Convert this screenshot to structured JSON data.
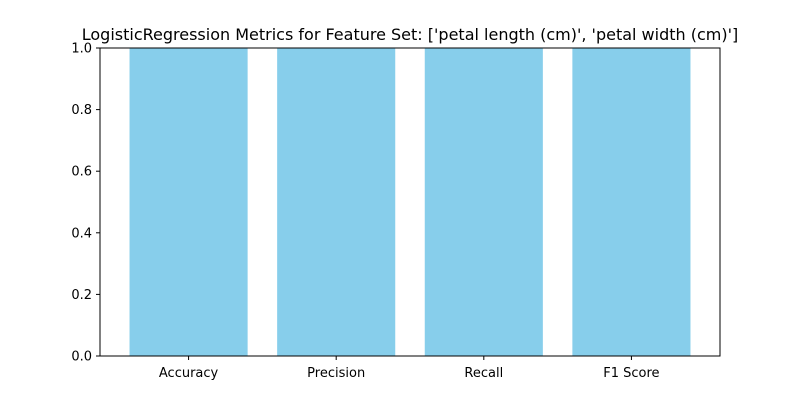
{
  "chart_data": {
    "type": "bar",
    "title": "LogisticRegression Metrics for Feature Set: ['petal length (cm)', 'petal width (cm)']",
    "xlabel": "",
    "ylabel": "",
    "categories": [
      "Accuracy",
      "Precision",
      "Recall",
      "F1 Score"
    ],
    "values": [
      1.0,
      1.0,
      1.0,
      1.0
    ],
    "ylim": [
      0,
      1.0
    ],
    "yticks": [
      "0.0",
      "0.2",
      "0.4",
      "0.6",
      "0.8",
      "1.0"
    ],
    "bar_color": "#87ceeb",
    "grid": false,
    "legend": "none"
  }
}
